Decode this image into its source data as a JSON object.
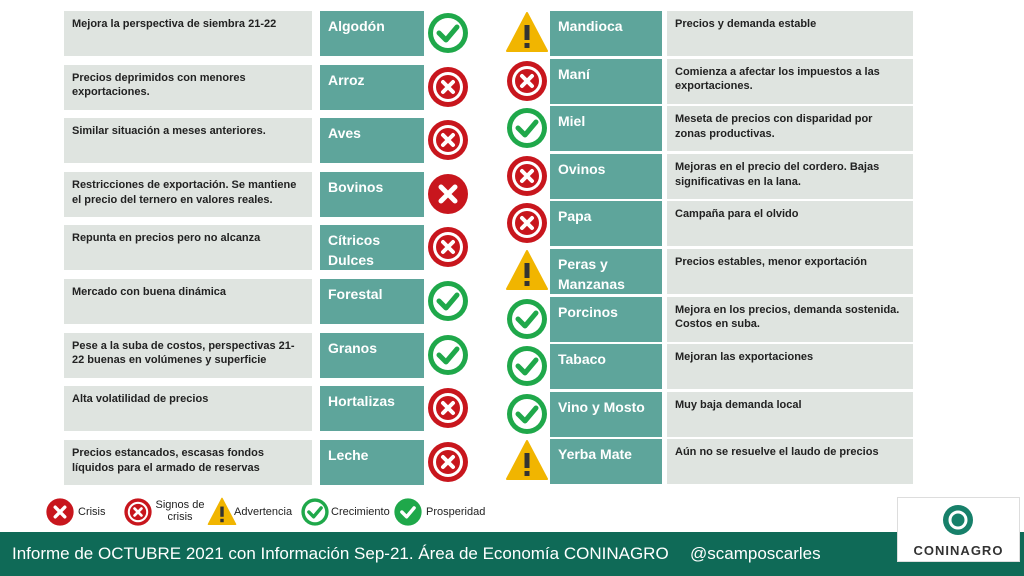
{
  "left_rows": [
    {
      "description": "Mejora la perspectiva de siembra 21-22",
      "product": "Algodón",
      "status": "Crecimiento"
    },
    {
      "description": "Precios deprimidos con menores exportaciones.",
      "product": "Arroz",
      "status": "Signos de crisis"
    },
    {
      "description": "Similar situación a meses anteriores.",
      "product": "Aves",
      "status": "Signos de crisis"
    },
    {
      "description": "Restricciones de exportación. Se mantiene el precio del ternero en valores reales.",
      "product": "Bovinos",
      "status": "Crisis"
    },
    {
      "description": "Repunta en precios pero no alcanza",
      "product": "Cítricos Dulces",
      "status": "Signos de crisis"
    },
    {
      "description": "Mercado con buena dinámica",
      "product": "Forestal",
      "status": "Crecimiento"
    },
    {
      "description": "Pese a la suba de costos, perspectivas 21-22 buenas en volúmenes y superficie",
      "product": "Granos",
      "status": "Crecimiento"
    },
    {
      "description": "Alta volatilidad de precios",
      "product": "Hortalizas",
      "status": "Signos de crisis"
    },
    {
      "description": "Precios estancados, escasas fondos líquidos para el armado de reservas",
      "product": "Leche",
      "status": "Signos de crisis"
    }
  ],
  "right_rows": [
    {
      "product": "Mandioca",
      "description": "Precios y demanda estable",
      "status": "Advertencia"
    },
    {
      "product": "Maní",
      "description": "Comienza a afectar los impuestos a las exportaciones.",
      "status": "Signos de crisis"
    },
    {
      "product": "Miel",
      "description": "Meseta de precios con disparidad por zonas productivas.",
      "status": "Crecimiento"
    },
    {
      "product": "Ovinos",
      "description": "Mejoras en el precio del cordero. Bajas significativas en la lana.",
      "status": "Signos de crisis"
    },
    {
      "product": "Papa",
      "description": "Campaña para el olvido",
      "status": "Signos de crisis"
    },
    {
      "product": "Peras y Manzanas",
      "description": "Precios estables, menor exportación",
      "status": "Advertencia"
    },
    {
      "product": "Porcinos",
      "description": "Mejora en los precios, demanda sostenida. Costos en suba.",
      "status": "Crecimiento"
    },
    {
      "product": "Tabaco",
      "description": "Mejoran las exportaciones",
      "status": "Crecimiento"
    },
    {
      "product": "Vino y Mosto",
      "description": "Muy baja demanda local",
      "status": "Crecimiento"
    },
    {
      "product": "Yerba Mate",
      "description": "Aún no se resuelve el laudo de precios",
      "status": "Advertencia"
    }
  ],
  "legend": [
    "Crisis",
    "Signos de crisis",
    "Advertencia",
    "Crecimiento",
    "Prosperidad"
  ],
  "footer": {
    "text": "Informe de OCTUBRE 2021 con Información Sep-21. Área de Economía CONINAGRO",
    "handle": "@scamposcarles"
  },
  "logo": {
    "name": "CONINAGRO"
  }
}
